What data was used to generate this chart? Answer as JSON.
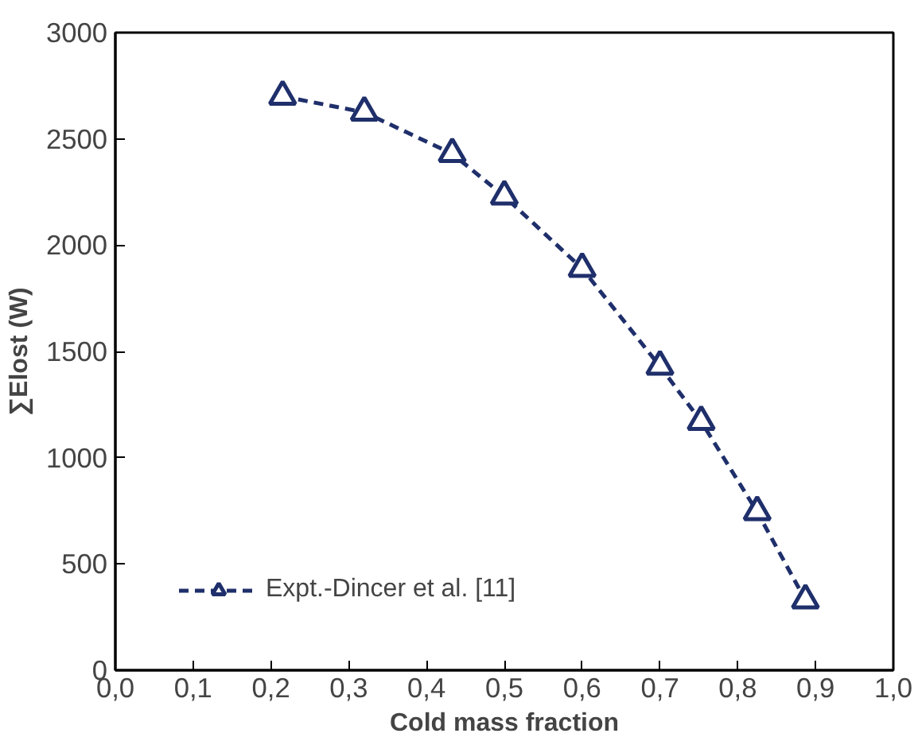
{
  "chart_data": {
    "type": "line",
    "xlabel": "Cold mass fraction",
    "ylabel": "∑Elost (W)",
    "xlim": [
      0,
      1
    ],
    "ylim": [
      0,
      3000
    ],
    "xticks": [
      {
        "value": 0,
        "label": "0,0"
      },
      {
        "value": 0.1,
        "label": "0,1"
      },
      {
        "value": 0.2,
        "label": "0,2"
      },
      {
        "value": 0.3,
        "label": "0,3"
      },
      {
        "value": 0.4,
        "label": "0,4"
      },
      {
        "value": 0.5,
        "label": "0,5"
      },
      {
        "value": 0.6,
        "label": "0,6"
      },
      {
        "value": 0.7,
        "label": "0,7"
      },
      {
        "value": 0.8,
        "label": "0,8"
      },
      {
        "value": 0.9,
        "label": "0,9"
      },
      {
        "value": 1,
        "label": "1,0"
      }
    ],
    "yticks": [
      0,
      500,
      1000,
      1500,
      2000,
      2500,
      3000
    ],
    "grid": false,
    "legend": "bottom left",
    "marker": "triangle",
    "line_style": "dashed",
    "series": [
      {
        "name": "Expt.-Dincer et al. [11]",
        "color": "#1f2f6b",
        "x": [
          0.215,
          0.32,
          0.433,
          0.5,
          0.6,
          0.7,
          0.753,
          0.825,
          0.887
        ],
        "values": [
          2700,
          2625,
          2430,
          2230,
          1890,
          1430,
          1170,
          745,
          330
        ]
      }
    ]
  }
}
